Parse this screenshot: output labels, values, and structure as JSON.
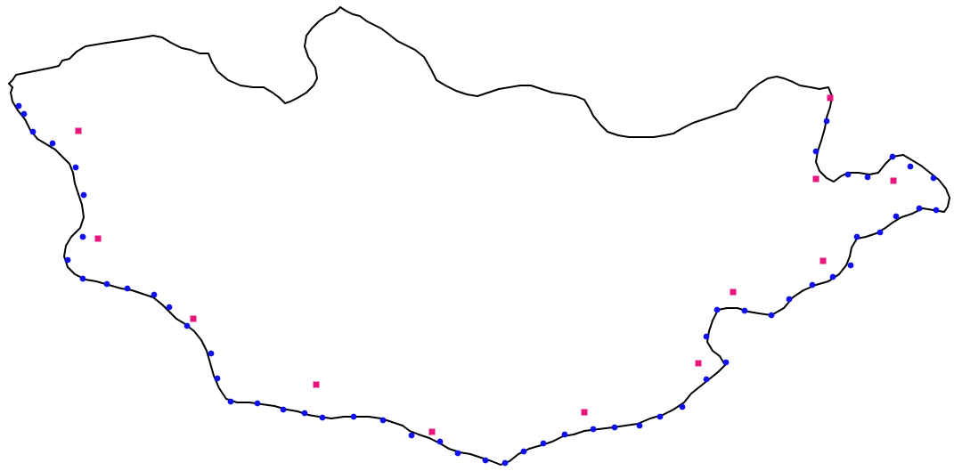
{
  "map": {
    "background_color": "#ffffff",
    "outline_color": "#000000",
    "border_point_color": "#1010ee",
    "interior_point_color": "#e8177d"
  }
}
